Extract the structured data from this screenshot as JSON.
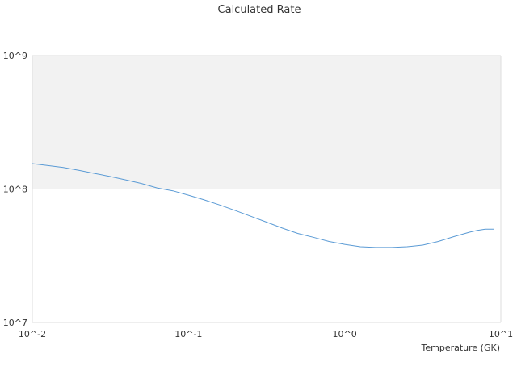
{
  "chart_data": {
    "type": "line",
    "title": "Calculated Rate",
    "xlabel": "Temperature (GK)",
    "ylabel": "",
    "x_scale": "log",
    "y_scale": "log",
    "xlim": [
      0.01,
      10
    ],
    "ylim": [
      10000000,
      1000000000
    ],
    "x_tick_labels": [
      "10^-2",
      "10^-1",
      "10^0",
      "10^1"
    ],
    "y_tick_labels": [
      "10^7",
      "10^8",
      "10^9"
    ],
    "grid": true,
    "legend": "none",
    "colors": {
      "line": "#5b9bd5",
      "band": "#f2f2f2",
      "grid": "#dddddd"
    },
    "series": [
      {
        "x": [
          0.01,
          0.0126,
          0.0158,
          0.02,
          0.025,
          0.0316,
          0.0398,
          0.05,
          0.063,
          0.0794,
          0.1,
          0.126,
          0.158,
          0.2,
          0.251,
          0.316,
          0.398,
          0.5,
          0.63,
          0.794,
          1.0,
          1.26,
          1.58,
          2.0,
          2.51,
          3.16,
          3.98,
          5.0,
          6.3,
          7.08,
          7.94,
          9.0
        ],
        "y": [
          155000000,
          150000000,
          145000000,
          138000000,
          131000000,
          124000000,
          117000000,
          110000000,
          102000000,
          97000000,
          90000000,
          83000000,
          76000000,
          69000000,
          62500000,
          56500000,
          51000000,
          46500000,
          43500000,
          40500000,
          38500000,
          37000000,
          36500000,
          36500000,
          37000000,
          38000000,
          40500000,
          44000000,
          47500000,
          49000000,
          50000000,
          50000000
        ]
      }
    ]
  }
}
